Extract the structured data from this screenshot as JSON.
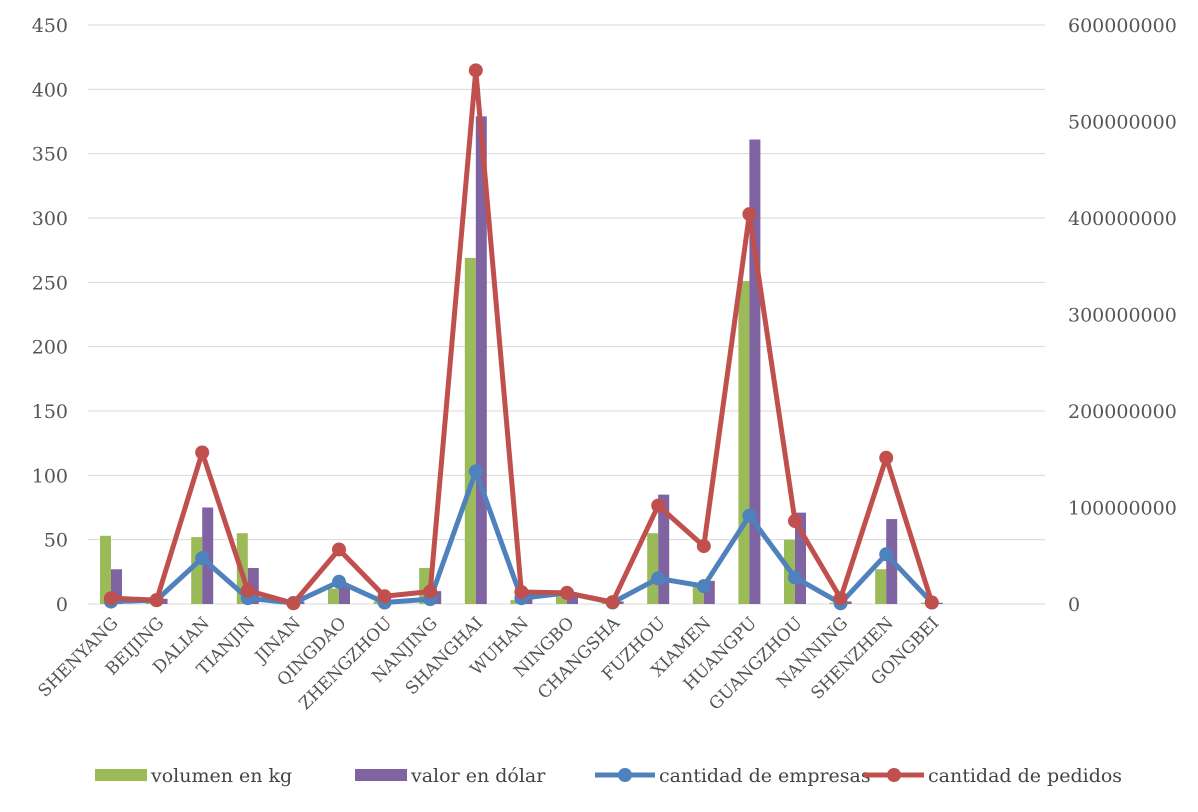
{
  "chart_data": {
    "type": "bar",
    "categories": [
      "SHENYANG",
      "BEIJING",
      "DALIAN",
      "TIANJIN",
      "JINAN",
      "QINGDAO",
      "ZHENGZHOU",
      "NANJING",
      "SHANGHAI",
      "WUHAN",
      "NINGBO",
      "CHANGSHA",
      "FUZHOU",
      "XIAMEN",
      "HUANGPU",
      "GUANGZHOU",
      "NANNING",
      "SHENZHEN",
      "GONGBEI"
    ],
    "y_left": {
      "min": 0,
      "max": 450,
      "ticks": [
        "0",
        "50",
        "100",
        "150",
        "200",
        "250",
        "300",
        "350",
        "400",
        "450"
      ]
    },
    "y_right": {
      "min": 0,
      "max": 600000000,
      "ticks": [
        "0",
        "100000000",
        "200000000",
        "300000000",
        "400000000",
        "500000000",
        "600000000"
      ]
    },
    "grid": true,
    "legend_position": "bottom",
    "series": [
      {
        "name": "volumen en kg",
        "kind": "bar",
        "axis": "left",
        "color": "#9BBB59",
        "values": [
          53,
          3,
          52,
          55,
          1,
          12,
          2,
          28,
          269,
          3,
          6,
          1,
          55,
          15,
          251,
          50,
          1,
          27,
          1
        ]
      },
      {
        "name": "valor en dólar",
        "kind": "bar",
        "axis": "left",
        "color": "#8064A2",
        "values": [
          27,
          4,
          75,
          28,
          2,
          15,
          3,
          10,
          379,
          8,
          9,
          2,
          85,
          18,
          361,
          71,
          2,
          66,
          1
        ]
      },
      {
        "name": "cantidad de empresas",
        "kind": "line",
        "axis": "right",
        "color": "#4F81BD",
        "values": [
          2500000,
          4000000,
          47500000,
          6000000,
          1000000,
          23000000,
          1500000,
          5000000,
          137500000,
          6000000,
          11500000,
          1500000,
          26500000,
          18500000,
          91500000,
          27500000,
          750000,
          51500000,
          1500000
        ]
      },
      {
        "name": "cantidad de pedidos",
        "kind": "line",
        "axis": "right",
        "color": "#C0504D",
        "values": [
          6000000,
          4000000,
          157000000,
          14000000,
          750000,
          56500000,
          8000000,
          13000000,
          553000000,
          12500000,
          11500000,
          2000000,
          102000000,
          60000000,
          404000000,
          86000000,
          6000000,
          151500000,
          1500000
        ]
      }
    ]
  }
}
